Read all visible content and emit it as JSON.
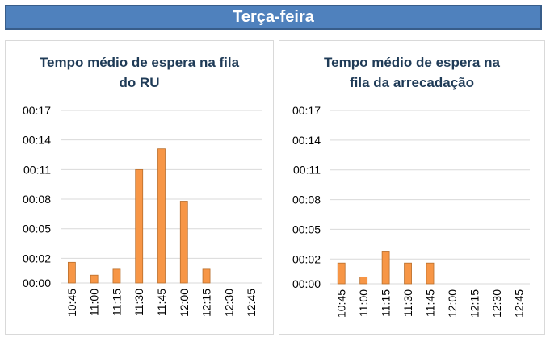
{
  "header": {
    "title": "Terça-feira"
  },
  "chart_data": [
    {
      "type": "bar",
      "title": "Tempo médio de espera na fila\ndo RU",
      "categories": [
        "10:45",
        "11:00",
        "11:15",
        "11:30",
        "11:45",
        "12:00",
        "12:15",
        "12:30",
        "12:45"
      ],
      "y_ticks": [
        "00:00",
        "00:02",
        "00:05",
        "00:08",
        "00:11",
        "00:14",
        "00:17"
      ],
      "ylim": [
        0,
        17
      ],
      "values_minutes": [
        2.1,
        0.8,
        1.4,
        11.5,
        13.6,
        8.3,
        1.4,
        0,
        0
      ],
      "grid": true,
      "xlabel": "",
      "ylabel": "",
      "colors": {
        "bar": "#f79646",
        "bar_edge": "#b86e2c",
        "grid": "#d9d9d9"
      }
    },
    {
      "type": "bar",
      "title": "Tempo médio de espera na\nfila da arrecadação",
      "categories": [
        "10:45",
        "11:00",
        "11:15",
        "11:30",
        "11:45",
        "12:00",
        "12:15",
        "12:30",
        "12:45"
      ],
      "y_ticks": [
        "00:00",
        "00:02",
        "00:05",
        "00:08",
        "00:11",
        "00:14",
        "00:17"
      ],
      "ylim": [
        0,
        17
      ],
      "values_minutes": [
        2.1,
        0.7,
        3.3,
        2.1,
        2.1,
        0,
        0,
        0,
        0
      ],
      "grid": true,
      "xlabel": "",
      "ylabel": "",
      "colors": {
        "bar": "#f79646",
        "bar_edge": "#b86e2c",
        "grid": "#d9d9d9"
      }
    }
  ]
}
